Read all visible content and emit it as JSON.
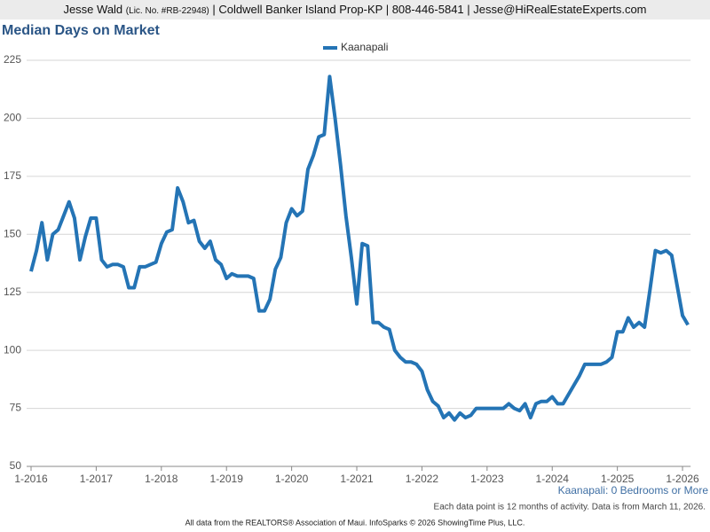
{
  "header": {
    "name": "Jesse Wald",
    "license": "(Lic. No. #RB-22948)",
    "rest": "| Coldwell Banker Island Prop-KP | 808-446-5841 | Jesse@HiRealEstateExperts.com"
  },
  "chart_data": {
    "type": "line",
    "title": "Median Days on Market",
    "subtitle": "Kaanapali: 0 Bedrooms or More",
    "note": "Each data point is 12 months of activity. Data is from March 11, 2026.",
    "categories": [
      "1-2016",
      null,
      null,
      null,
      null,
      null,
      null,
      null,
      null,
      null,
      null,
      null,
      "1-2017",
      null,
      null,
      null,
      null,
      null,
      null,
      null,
      null,
      null,
      null,
      null,
      "1-2018",
      null,
      null,
      null,
      null,
      null,
      null,
      null,
      null,
      null,
      null,
      null,
      "1-2019",
      null,
      null,
      null,
      null,
      null,
      null,
      null,
      null,
      null,
      null,
      null,
      "1-2020",
      null,
      null,
      null,
      null,
      null,
      null,
      null,
      null,
      null,
      null,
      null,
      "1-2021",
      null,
      null,
      null,
      null,
      null,
      null,
      null,
      null,
      null,
      null,
      null,
      "1-2022",
      null,
      null,
      null,
      null,
      null,
      null,
      null,
      null,
      null,
      null,
      null,
      "1-2023",
      null,
      null,
      null,
      null,
      null,
      null,
      null,
      null,
      null,
      null,
      null,
      "1-2024",
      null,
      null,
      null,
      null,
      null,
      null,
      null,
      null,
      null,
      null,
      null,
      "1-2025",
      null,
      null,
      null,
      null,
      null,
      null,
      null,
      null,
      null,
      null,
      null,
      "1-2026",
      null
    ],
    "series": [
      {
        "name": "Kaanapali",
        "color": "#2474b5",
        "values": [
          134,
          143,
          155,
          139,
          150,
          152,
          158,
          164,
          157,
          139,
          149,
          157,
          157,
          139,
          136,
          137,
          137,
          136,
          127,
          127,
          136,
          136,
          137,
          138,
          146,
          151,
          152,
          170,
          164,
          155,
          156,
          147,
          144,
          147,
          139,
          137,
          131,
          133,
          132,
          132,
          132,
          131,
          117,
          117,
          122,
          135,
          140,
          155,
          161,
          158,
          160,
          178,
          184,
          192,
          193,
          218,
          200,
          180,
          158,
          140,
          120,
          146,
          145,
          112,
          112,
          110,
          109,
          100,
          97,
          95,
          95,
          94,
          91,
          83,
          78,
          76,
          71,
          73,
          70,
          73,
          71,
          72,
          75,
          75,
          75,
          75,
          75,
          75,
          77,
          75,
          74,
          77,
          71,
          77,
          78,
          78,
          80,
          77,
          77,
          81,
          85,
          89,
          94,
          94,
          94,
          94,
          95,
          97,
          108,
          108,
          114,
          110,
          112,
          110,
          126,
          143,
          142,
          143,
          141,
          128,
          115,
          111
        ]
      }
    ],
    "ylim": [
      50,
      225
    ],
    "yticks": [
      50,
      75,
      100,
      125,
      150,
      175,
      200,
      225
    ],
    "grid": true,
    "legend": "top"
  },
  "footer": "All data from the REALTORS® Association of Maui. InfoSparks © 2026 ShowingTime Plus, LLC."
}
